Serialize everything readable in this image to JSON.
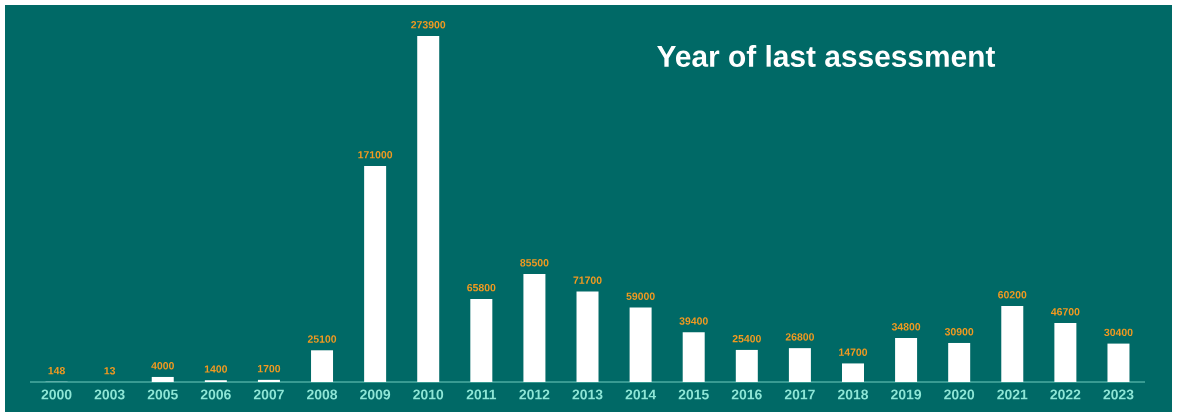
{
  "chart_data": {
    "type": "bar",
    "title": "Year of last assessment",
    "categories": [
      "2000",
      "2003",
      "2005",
      "2006",
      "2007",
      "2008",
      "2009",
      "2010",
      "2011",
      "2012",
      "2013",
      "2014",
      "2015",
      "2016",
      "2017",
      "2018",
      "2019",
      "2020",
      "2021",
      "2022",
      "2023"
    ],
    "values": [
      148,
      13,
      4000,
      1400,
      1700,
      25100,
      171000,
      273900,
      65800,
      85500,
      71700,
      59000,
      39400,
      25400,
      26800,
      14700,
      34800,
      30900,
      60200,
      46700,
      30400
    ],
    "color": "#ffffff",
    "data_labels": true
  }
}
